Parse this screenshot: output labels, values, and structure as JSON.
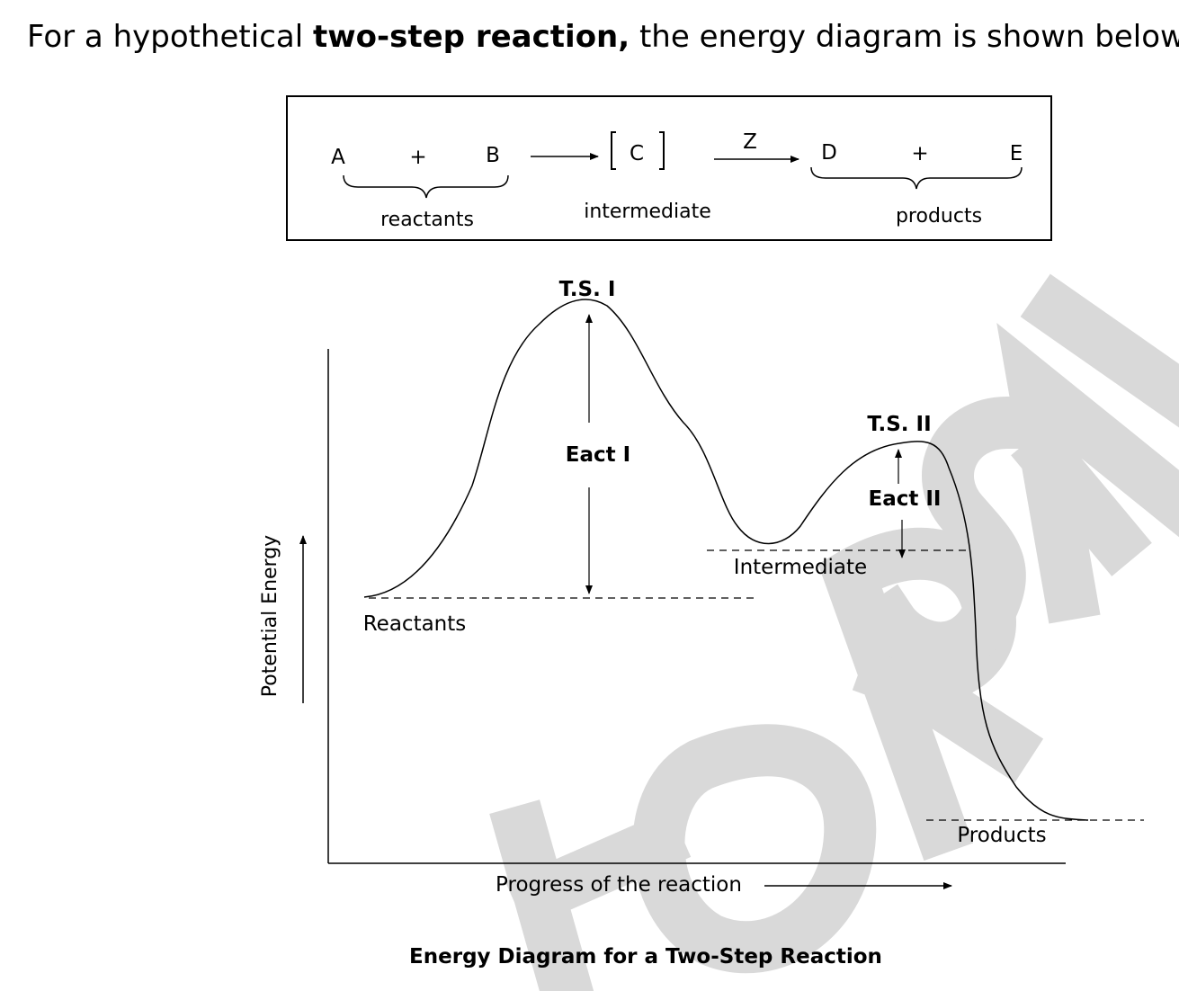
{
  "intro": {
    "before": "For a hypothetical ",
    "bold": "two-step reaction,",
    "after": " the energy diagram is shown below:"
  },
  "equation": {
    "species_a": "A",
    "plus_1": "+",
    "species_b": "B",
    "intermediate_symbol": "C",
    "catalyst": "Z",
    "species_d": "D",
    "plus_2": "+",
    "species_e": "E",
    "reactants_label": "reactants",
    "intermediate_label": "intermediate",
    "products_label": "products"
  },
  "diagram": {
    "ts1_label": "T.S. I",
    "ts2_label": "T.S. II",
    "eact1_label": "Eact I",
    "eact2_label": "Eact II",
    "intermediate_level_label": "Intermediate",
    "reactants_level_label": "Reactants",
    "products_level_label": "Products",
    "y_axis_label": "Potential Energy",
    "x_axis_label": "Progress of the reaction",
    "caption": "Energy Diagram for a Two-Step Reaction"
  },
  "watermark": {
    "text": "FOR SALE",
    "color": "#d9d9d9"
  }
}
